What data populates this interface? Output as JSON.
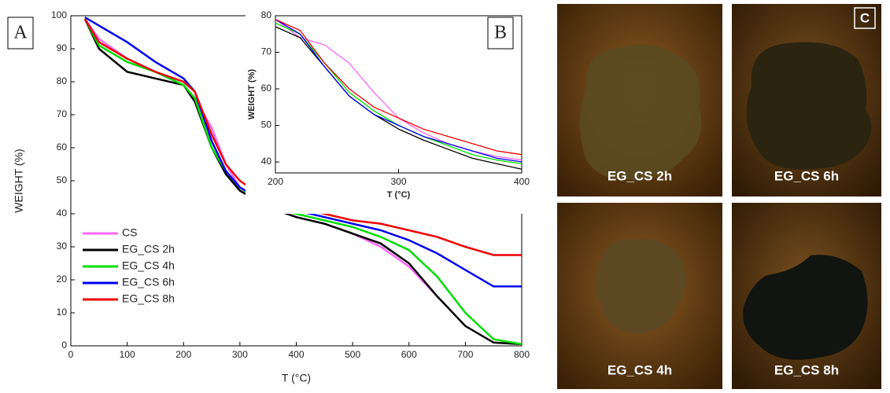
{
  "panel_labels": [
    "A",
    "B",
    "C"
  ],
  "photo_labels": [
    "EG_CS 2h",
    "EG_CS 6h",
    "EG_CS 4h",
    "EG_CS 8h"
  ],
  "chart_data": [
    {
      "type": "line",
      "xlabel": "T (°C)",
      "ylabel": "WEIGHT (%)",
      "x": [
        25,
        50,
        100,
        150,
        200,
        220,
        250,
        275,
        300,
        350,
        400,
        450,
        500,
        550,
        600,
        650,
        700,
        750,
        800
      ],
      "xlim": [
        0,
        800
      ],
      "xticks": [
        0,
        100,
        200,
        300,
        400,
        500,
        600,
        700,
        800
      ],
      "ylim": [
        0,
        100
      ],
      "yticks": [
        0,
        10,
        20,
        30,
        40,
        50,
        60,
        70,
        80,
        90,
        100
      ],
      "legend": "lower left",
      "series": [
        {
          "name": "CS",
          "color": "#ff66ff",
          "values": [
            99,
            93,
            87,
            83,
            79,
            75,
            66,
            55,
            48,
            42,
            39,
            37,
            34,
            30,
            24,
            15,
            6,
            null,
            null
          ]
        },
        {
          "name": "EG_CS 2h",
          "color": "#000000",
          "values": [
            99,
            90,
            83,
            81,
            79,
            74,
            60,
            52,
            47,
            42,
            39,
            37,
            34,
            31,
            25,
            15,
            6,
            1,
            0.5
          ]
        },
        {
          "name": "EG_CS 4h",
          "color": "#00dd00",
          "values": [
            99,
            91,
            86,
            83,
            79,
            75,
            60,
            53,
            48,
            42,
            40,
            38,
            36,
            33,
            29,
            21,
            10,
            2,
            0.5
          ]
        },
        {
          "name": "EG_CS 6h",
          "color": "#0000ee",
          "values": [
            99.5,
            97,
            92,
            86,
            81,
            77,
            62,
            53,
            48,
            43,
            41,
            39,
            37,
            35,
            32,
            28,
            23,
            18,
            18
          ]
        },
        {
          "name": "EG_CS 8h",
          "color": "#ee0000",
          "values": [
            99,
            92,
            87,
            83,
            80,
            77,
            64,
            55,
            50,
            44,
            42,
            40,
            38,
            37,
            35,
            33,
            30,
            27.5,
            27.5
          ]
        }
      ]
    },
    {
      "type": "line",
      "xlabel": "T (°C)",
      "ylabel": "WEIGHT (%)",
      "x": [
        200,
        220,
        240,
        260,
        280,
        300,
        320,
        340,
        360,
        380,
        400
      ],
      "xlim": [
        200,
        400
      ],
      "xticks": [
        200,
        300,
        400
      ],
      "ylim": [
        37,
        80
      ],
      "yticks": [
        40,
        50,
        60,
        70,
        80
      ],
      "series": [
        {
          "name": "CS",
          "color": "#ff66ff",
          "values": [
            79,
            74,
            72,
            67,
            59,
            52,
            48,
            45,
            43,
            41.5,
            40.5
          ]
        },
        {
          "name": "EG_CS 2h",
          "color": "#000000",
          "values": [
            77,
            74,
            66,
            58,
            53,
            49,
            46,
            43.5,
            41,
            39.5,
            38
          ]
        },
        {
          "name": "EG_CS 4h",
          "color": "#00dd00",
          "values": [
            78,
            75,
            67,
            59,
            54,
            50,
            47,
            44.5,
            42,
            40.5,
            39.5
          ]
        },
        {
          "name": "EG_CS 6h",
          "color": "#0000ee",
          "values": [
            79,
            75,
            66,
            58,
            53,
            50,
            47,
            45,
            43,
            41,
            40
          ]
        },
        {
          "name": "EG_CS 8h",
          "color": "#ee0000",
          "values": [
            79,
            76,
            67,
            60,
            55,
            52,
            49,
            47,
            45,
            43,
            42
          ]
        }
      ]
    }
  ]
}
